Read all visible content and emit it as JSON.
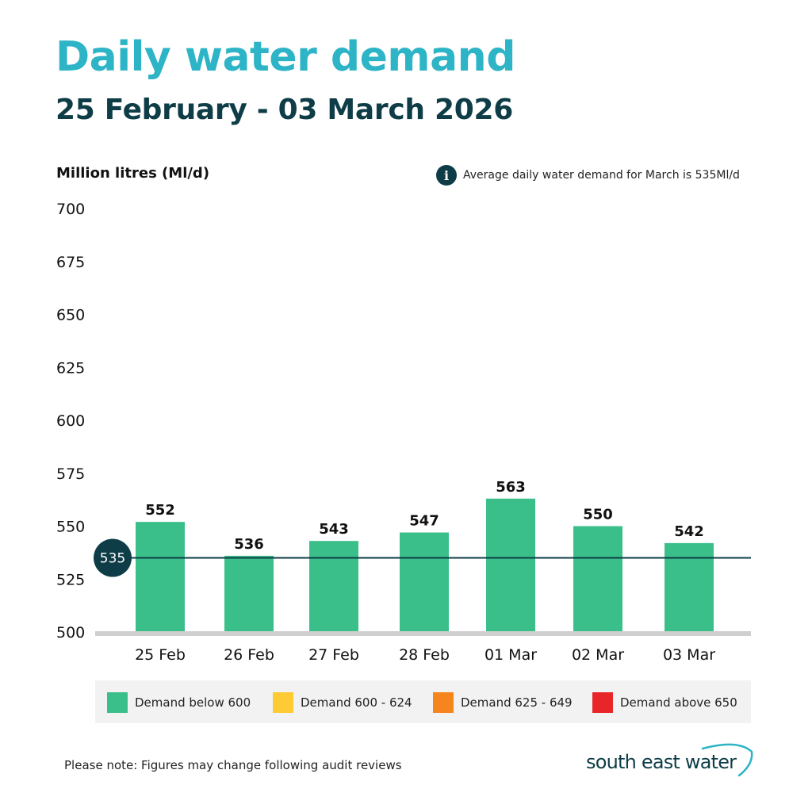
{
  "title": "Daily water demand",
  "subtitle": "25 February - 03 March 2026",
  "info": {
    "icon": "info-icon",
    "icon_glyph": "i",
    "text": "Average daily water demand for March is 535Ml/d"
  },
  "legend": [
    {
      "label": "Demand below 600",
      "color": "#3bbf8a"
    },
    {
      "label": "Demand 600 - 624",
      "color": "#fecb34"
    },
    {
      "label": "Demand 625 - 649",
      "color": "#f7851e"
    },
    {
      "label": "Demand above 650",
      "color": "#e8262a"
    }
  ],
  "note": "Please note: Figures may change following audit reviews",
  "logo": {
    "text": "south east water",
    "color": "#0e3d47",
    "accent": "#2db4c6"
  },
  "chart_data": {
    "type": "bar",
    "title": "Daily water demand",
    "subtitle": "25 February - 03 March 2026",
    "ylabel": "Million litres (Ml/d)",
    "xlabel": "",
    "categories": [
      "25 Feb",
      "26 Feb",
      "27 Feb",
      "28 Feb",
      "01 Mar",
      "02 Mar",
      "03 Mar"
    ],
    "values": [
      552,
      536,
      543,
      547,
      563,
      550,
      542
    ],
    "data_labels": [
      "552",
      "536",
      "543",
      "547",
      "563",
      "550",
      "542"
    ],
    "ylim": [
      500,
      700
    ],
    "yticks": [
      700,
      675,
      650,
      625,
      600,
      575,
      550,
      525,
      500
    ],
    "bar_color": "#3bbf8a",
    "reference_line": {
      "value": 535,
      "label": "535",
      "color": "#0e3d47"
    },
    "grid": false,
    "legend_position": "bottom"
  }
}
